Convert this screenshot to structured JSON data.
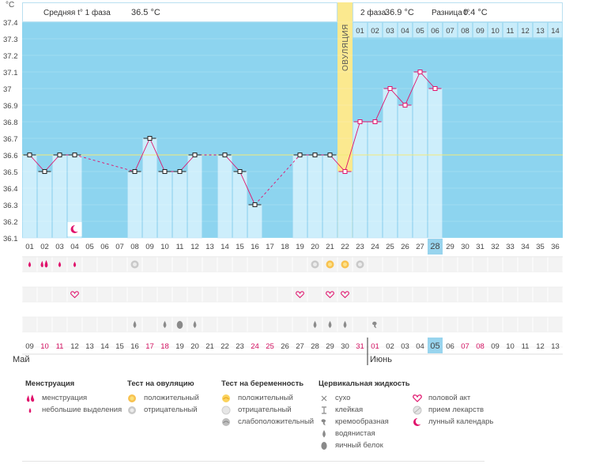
{
  "chart_data": {
    "type": "line",
    "y_unit": "°C",
    "ylim": [
      36.1,
      37.4
    ],
    "y_ticks": [
      "37.4",
      "37.3",
      "37.2",
      "37.1",
      "37",
      "36.9",
      "36.8",
      "36.7",
      "36.6",
      "36.5",
      "36.4",
      "36.3",
      "36.2",
      "36.1"
    ],
    "cycle_days": [
      "01",
      "02",
      "03",
      "04",
      "05",
      "06",
      "07",
      "08",
      "09",
      "10",
      "11",
      "12",
      "13",
      "14",
      "15",
      "16",
      "17",
      "18",
      "19",
      "20",
      "21",
      "22",
      "23",
      "24",
      "25",
      "26",
      "27",
      "28",
      "29",
      "30",
      "31",
      "32",
      "33",
      "34",
      "35",
      "36"
    ],
    "temps": [
      36.6,
      36.5,
      36.6,
      36.6,
      null,
      null,
      null,
      36.5,
      36.7,
      36.5,
      36.5,
      36.6,
      null,
      36.6,
      36.5,
      36.3,
      null,
      null,
      36.6,
      36.6,
      36.6,
      36.5,
      36.8,
      36.8,
      37.0,
      36.9,
      37.1,
      37.0,
      null,
      null,
      null,
      null,
      null,
      null,
      null,
      null
    ],
    "coverline": 36.6,
    "ovulation_day": "22",
    "ovulation_label": "ОВУЛЯЦИЯ",
    "current_day": "28",
    "phase1_text": "Средняя t° 1 фаза",
    "phase1_value": "36.5 °C",
    "phase2_text": "2 фаза",
    "phase2_value": "36.9 °C",
    "diff_text": "Разница t°",
    "diff_value": "0.4 °C",
    "post_ovulation_days": [
      "01",
      "02",
      "03",
      "04",
      "05",
      "06",
      "07",
      "08",
      "09",
      "10",
      "11",
      "12",
      "13",
      "14"
    ],
    "calendar_dates": [
      "09",
      "10",
      "11",
      "12",
      "13",
      "14",
      "15",
      "16",
      "17",
      "18",
      "19",
      "20",
      "21",
      "22",
      "23",
      "24",
      "25",
      "26",
      "27",
      "28",
      "29",
      "30",
      "31",
      "01",
      "02",
      "03",
      "04",
      "05",
      "06",
      "07",
      "08",
      "09",
      "10",
      "11",
      "12",
      "13"
    ],
    "red_dates_idx": [
      1,
      2,
      8,
      9,
      15,
      16,
      22,
      23,
      29,
      30
    ],
    "today_idx": 27,
    "month_may": "Май",
    "month_june": "Июнь",
    "mens_days": [
      0,
      1,
      2,
      3
    ],
    "mens_heavy_days": [
      1
    ],
    "ovtest_negative_days": [
      7,
      19,
      22
    ],
    "ovtest_positive_days": [
      20,
      21
    ],
    "sex_days": [
      3,
      18,
      20,
      21
    ],
    "mucus_watery_days": [
      7,
      9,
      11,
      19,
      20,
      21
    ],
    "mucus_eggwhite_days": [
      10
    ],
    "mucus_creamy_days": [
      23
    ],
    "moon_day": 3,
    "colors": {
      "sky": "#8dd4ef",
      "bar": "#cdeefb",
      "bar_edge": "#a8dcf3",
      "line": "#e0116b",
      "coverline": "#f2ea7a",
      "ovulation": "#fbe98f",
      "grid_row": "#efefef",
      "red_date": "#d10f5f",
      "today": "#98d4ee"
    }
  },
  "legend": {
    "menstruation": {
      "title": "Менструация",
      "items": [
        "менструация",
        "небольшие выделения"
      ]
    },
    "ovulation_test": {
      "title": "Тест на овуляцию",
      "items": [
        "положительный",
        "отрицательный"
      ]
    },
    "pregnancy_test": {
      "title": "Тест на беременность",
      "items": [
        "положительный",
        "отрицательный",
        "слабоположительный"
      ]
    },
    "cervical": {
      "title": "Цервикальная жидкость",
      "items": [
        "сухо",
        "клейкая",
        "кремообразная",
        "водянистая",
        "яичный белок"
      ]
    },
    "other": {
      "items": [
        "половой акт",
        "прием лекарств",
        "лунный календарь"
      ]
    }
  }
}
